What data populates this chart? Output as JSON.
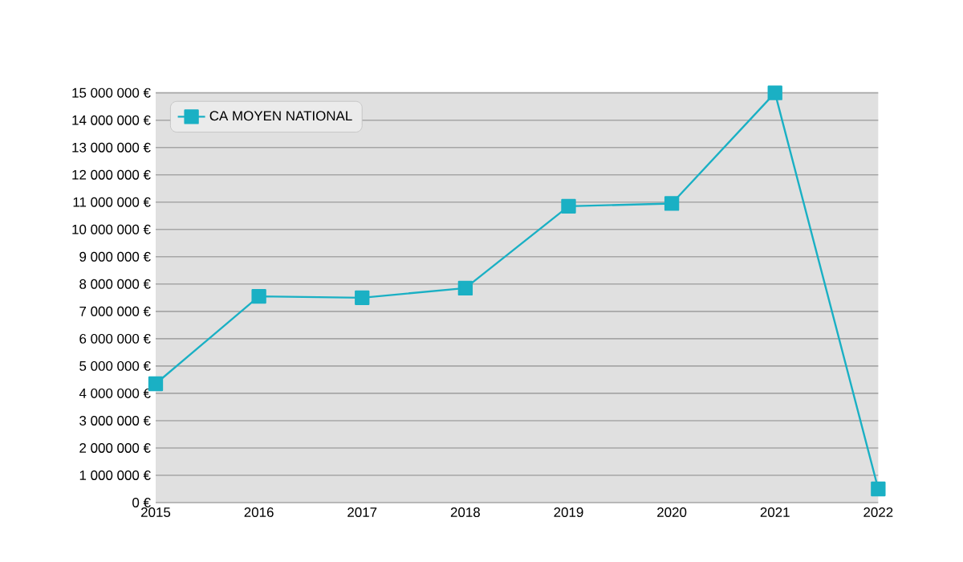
{
  "chart_data": {
    "type": "line",
    "categories": [
      "2015",
      "2016",
      "2017",
      "2018",
      "2019",
      "2020",
      "2021",
      "2022"
    ],
    "series": [
      {
        "name": "CA MOYEN NATIONAL",
        "color": "#1ab0c4",
        "values": [
          4350000,
          7550000,
          7500000,
          7850000,
          10850000,
          10950000,
          15000000,
          500000
        ]
      }
    ],
    "ylim": [
      0,
      15000000
    ],
    "yticks": [
      {
        "value": 0,
        "label": "0 €"
      },
      {
        "value": 1000000,
        "label": "1 000 000 €"
      },
      {
        "value": 2000000,
        "label": "2 000 000 €"
      },
      {
        "value": 3000000,
        "label": "3 000 000 €"
      },
      {
        "value": 4000000,
        "label": "4 000 000 €"
      },
      {
        "value": 5000000,
        "label": "5 000 000 €"
      },
      {
        "value": 6000000,
        "label": "6 000 000 €"
      },
      {
        "value": 7000000,
        "label": "7 000 000 €"
      },
      {
        "value": 8000000,
        "label": "8 000 000 €"
      },
      {
        "value": 9000000,
        "label": "9 000 000 €"
      },
      {
        "value": 10000000,
        "label": "10 000 000 €"
      },
      {
        "value": 11000000,
        "label": "11 000 000 €"
      },
      {
        "value": 12000000,
        "label": "12 000 000 €"
      },
      {
        "value": 13000000,
        "label": "13 000 000 €"
      },
      {
        "value": 14000000,
        "label": "14 000 000 €"
      },
      {
        "value": 15000000,
        "label": "15 000 000 €"
      }
    ],
    "grid": "y",
    "legend": "top left",
    "marker": "square",
    "line_style": "solid"
  }
}
